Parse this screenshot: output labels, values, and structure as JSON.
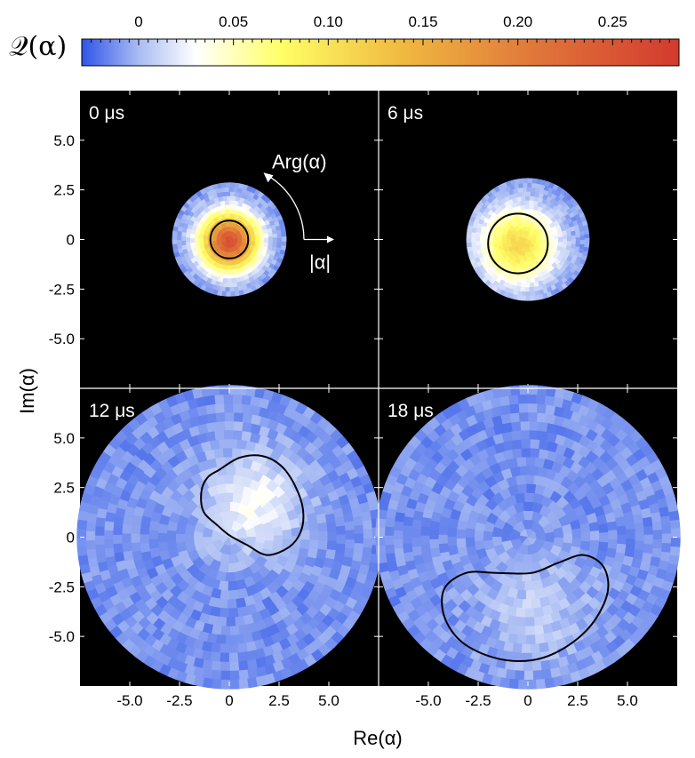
{
  "chart_data": {
    "type": "heatmap",
    "colorbar": {
      "title": "𝒬(α)",
      "ticks": [
        "0",
        "0.05",
        "0.10",
        "0.15",
        "0.20",
        "0.25"
      ],
      "tick_values": [
        0,
        0.05,
        0.1,
        0.15,
        0.2,
        0.25
      ],
      "range": [
        -0.03,
        0.285
      ],
      "colors": [
        "#2f55e8",
        "#a9bcf3",
        "#ffffff",
        "#ffff66",
        "#f0b840",
        "#e0763a",
        "#d33a2e"
      ],
      "color_stops": [
        -0.03,
        0.0,
        0.03,
        0.075,
        0.14,
        0.21,
        0.285
      ]
    },
    "xlabel": "Re(α)",
    "ylabel": "Im(α)",
    "xlim": [
      -7.5,
      7.5
    ],
    "ylim": [
      -7.5,
      7.5
    ],
    "xticks": [
      -5.0,
      -2.5,
      0,
      2.5,
      5.0
    ],
    "xtick_labels": [
      "-5.0",
      "-2.5",
      "0",
      "2.5",
      "5.0"
    ],
    "yticks": [
      5.0,
      2.5,
      0,
      -2.5,
      -5.0
    ],
    "ytick_labels": [
      "5.0",
      "2.5",
      "0",
      "-2.5",
      "-5.0"
    ],
    "annotations": {
      "arg": "Arg(α)",
      "abs": "|α|"
    },
    "panels": [
      {
        "label": "0 μs",
        "disk_radius": 2.8,
        "background": "#000000",
        "peak": {
          "x": 0,
          "y": -0.1,
          "value": 0.27,
          "sigma": 0.95
        },
        "contour": {
          "center": [
            0,
            0
          ],
          "radius": 0.95,
          "type": "circle"
        }
      },
      {
        "label": "6 μs",
        "disk_radius": 3.0,
        "background": "#000000",
        "peak": {
          "x": -0.5,
          "y": -0.3,
          "value": 0.12,
          "sigma": 1.3
        },
        "contour": {
          "center": [
            -0.5,
            -0.2
          ],
          "radius": 1.5,
          "type": "circle"
        }
      },
      {
        "label": "12 μs",
        "disk_radius": 7.5,
        "background": "#000000",
        "peak": {
          "x": 1.2,
          "y": 1.8,
          "value": 0.04,
          "sigma": 1.8
        },
        "contour": {
          "type": "blob",
          "points": [
            [
              -0.5,
              3.4
            ],
            [
              0.5,
              4.0
            ],
            [
              1.6,
              4.1
            ],
            [
              2.6,
              3.6
            ],
            [
              3.3,
              2.6
            ],
            [
              3.7,
              1.4
            ],
            [
              3.6,
              0.3
            ],
            [
              3.0,
              -0.5
            ],
            [
              1.9,
              -0.9
            ],
            [
              0.9,
              -0.4
            ],
            [
              0.0,
              0.1
            ],
            [
              -0.6,
              0.6
            ],
            [
              -1.3,
              1.3
            ],
            [
              -1.4,
              2.3
            ],
            [
              -1.1,
              3.0
            ]
          ]
        }
      },
      {
        "label": "18 μs",
        "disk_radius": 7.5,
        "background": "#000000",
        "peak": {
          "x": 0.5,
          "y": -3.8,
          "value": 0.02,
          "sigma": 2.0
        },
        "contour": {
          "type": "blob",
          "points": [
            [
              -3.1,
              -1.8
            ],
            [
              -1.6,
              -1.8
            ],
            [
              0.2,
              -1.8
            ],
            [
              1.5,
              -1.3
            ],
            [
              2.8,
              -0.9
            ],
            [
              3.8,
              -1.5
            ],
            [
              4.0,
              -2.8
            ],
            [
              3.2,
              -4.4
            ],
            [
              1.8,
              -5.6
            ],
            [
              0.2,
              -6.2
            ],
            [
              -1.6,
              -6.1
            ],
            [
              -3.3,
              -5.3
            ],
            [
              -4.2,
              -4.0
            ],
            [
              -4.2,
              -2.6
            ]
          ]
        }
      }
    ]
  }
}
